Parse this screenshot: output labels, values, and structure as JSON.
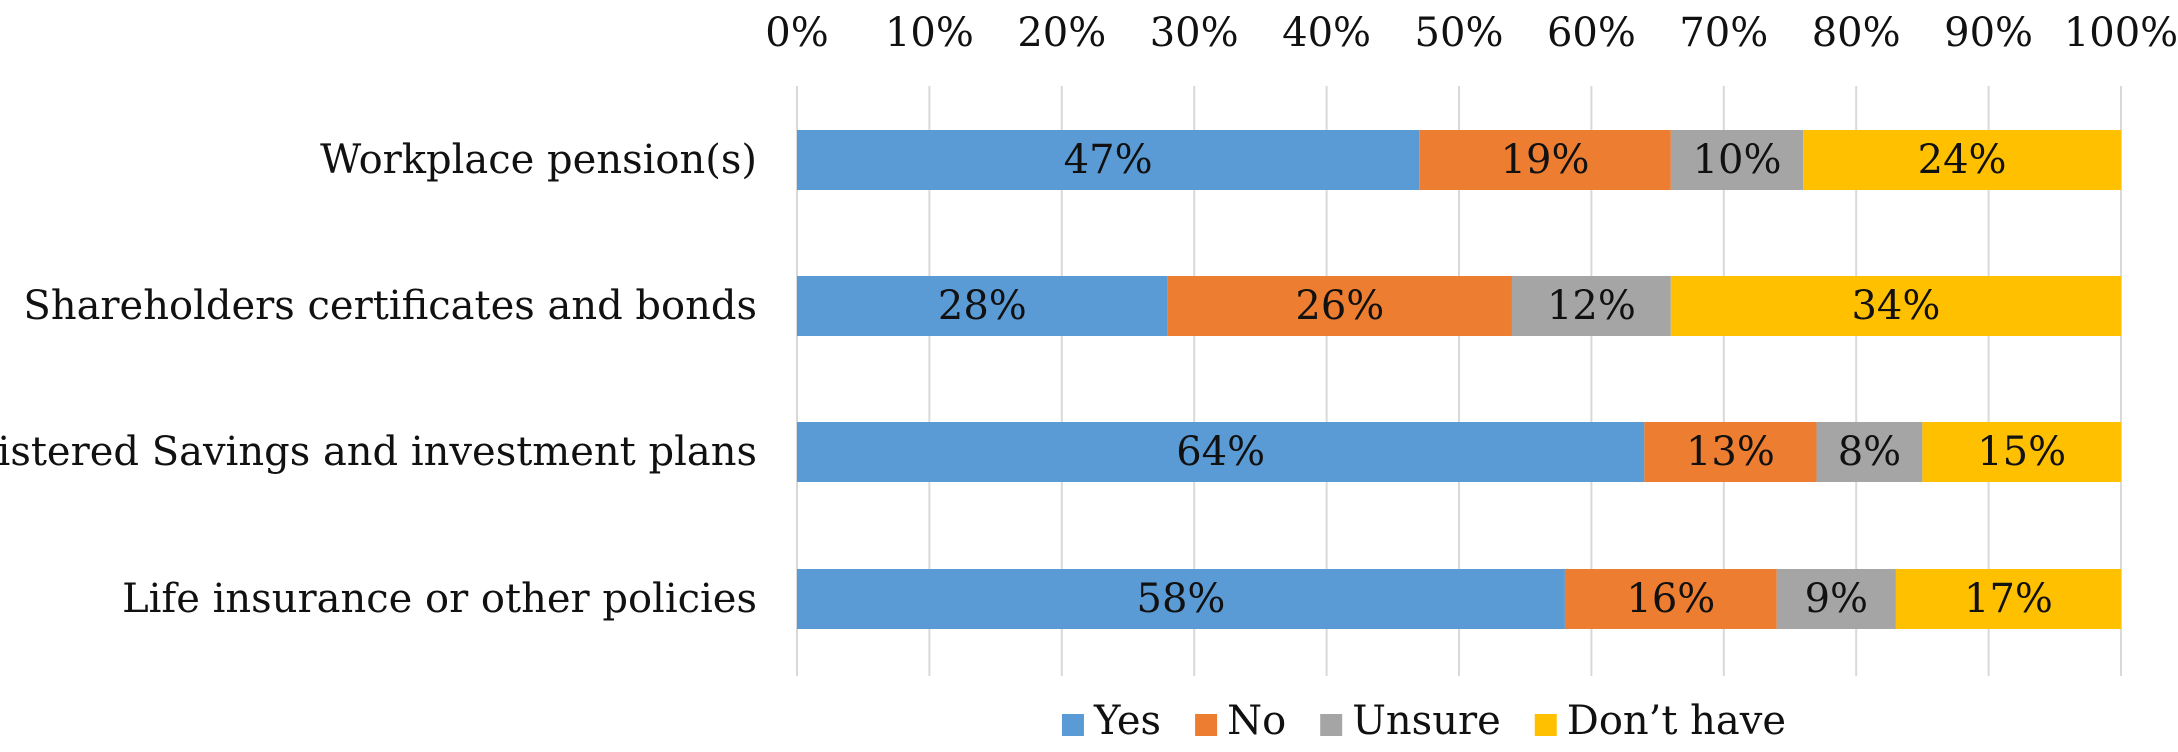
{
  "chart_data": {
    "type": "bar",
    "orientation": "horizontal",
    "stacked": "percent",
    "title": "",
    "xlabel": "",
    "ylabel": "",
    "xlim": [
      0,
      100
    ],
    "x_ticks": [
      "0%",
      "10%",
      "20%",
      "30%",
      "40%",
      "50%",
      "60%",
      "70%",
      "80%",
      "90%",
      "100%"
    ],
    "x_axis_position": "top",
    "grid": true,
    "legend_position": "bottom",
    "categories": [
      "Workplace pension(s)",
      "Shareholders certificates and bonds",
      "Registered Savings and investment plans",
      "Life insurance or other policies"
    ],
    "series": [
      {
        "name": "Yes",
        "color": "#5B9BD5",
        "values": [
          47,
          28,
          64,
          58
        ],
        "labels": [
          "47%",
          "28%",
          "64%",
          "58%"
        ]
      },
      {
        "name": "No",
        "color": "#ED7D31",
        "values": [
          19,
          26,
          13,
          16
        ],
        "labels": [
          "19%",
          "26%",
          "13%",
          "16%"
        ]
      },
      {
        "name": "Unsure",
        "color": "#A5A5A5",
        "values": [
          10,
          12,
          8,
          9
        ],
        "labels": [
          "10%",
          "12%",
          "8%",
          "9%"
        ]
      },
      {
        "name": "Don’t have",
        "color": "#FFC000",
        "values": [
          24,
          34,
          15,
          17
        ],
        "labels": [
          "24%",
          "34%",
          "15%",
          "17%"
        ]
      }
    ]
  }
}
